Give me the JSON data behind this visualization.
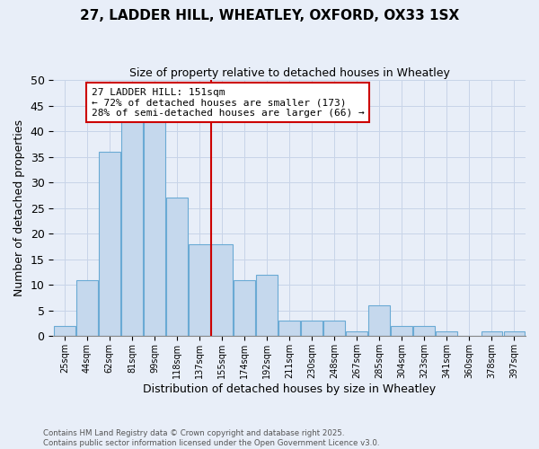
{
  "title": "27, LADDER HILL, WHEATLEY, OXFORD, OX33 1SX",
  "subtitle": "Size of property relative to detached houses in Wheatley",
  "xlabel": "Distribution of detached houses by size in Wheatley",
  "ylabel": "Number of detached properties",
  "bar_values": [
    2,
    11,
    36,
    42,
    42,
    27,
    18,
    18,
    11,
    12,
    3,
    3,
    3,
    1,
    6,
    2,
    2,
    1,
    0,
    1,
    1
  ],
  "bin_labels": [
    "25sqm",
    "44sqm",
    "62sqm",
    "81sqm",
    "99sqm",
    "118sqm",
    "137sqm",
    "155sqm",
    "174sqm",
    "192sqm",
    "211sqm",
    "230sqm",
    "248sqm",
    "267sqm",
    "285sqm",
    "304sqm",
    "323sqm",
    "341sqm",
    "360sqm",
    "378sqm",
    "397sqm"
  ],
  "bar_color": "#c5d8ed",
  "bar_edge_color": "#6aaad4",
  "vline_index": 7,
  "vline_color": "#cc0000",
  "annotation_text_line1": "27 LADDER HILL: 151sqm",
  "annotation_text_line2": "← 72% of detached houses are smaller (173)",
  "annotation_text_line3": "28% of semi-detached houses are larger (66) →",
  "annotation_box_edge": "#cc0000",
  "annotation_box_face": "#ffffff",
  "ylim": [
    0,
    50
  ],
  "yticks": [
    0,
    5,
    10,
    15,
    20,
    25,
    30,
    35,
    40,
    45,
    50
  ],
  "grid_color": "#c8d4e8",
  "bg_color": "#e8eef8",
  "footer_line1": "Contains HM Land Registry data © Crown copyright and database right 2025.",
  "footer_line2": "Contains public sector information licensed under the Open Government Licence v3.0."
}
